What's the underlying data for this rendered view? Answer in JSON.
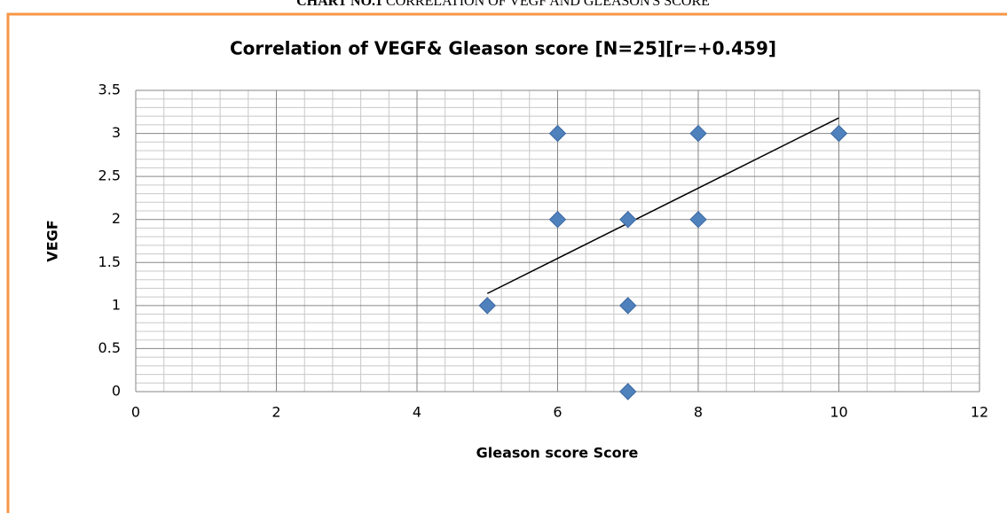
{
  "caption": {
    "bold": "CHART NO.1",
    "text": "CORRELATION OF VEGF AND GLEASON'S SCORE"
  },
  "chart_data": {
    "type": "scatter",
    "title": "Correlation of VEGF& Gleason score [N=25][r=+0.459]",
    "x_label": "Gleason score Score",
    "y_label": "VEGF",
    "x": [
      5,
      6,
      6,
      7,
      7,
      7,
      8,
      8,
      10
    ],
    "series": [
      {
        "name": "VEGF",
        "color": "#4f81bd",
        "values": [
          1,
          3,
          2,
          2,
          1,
          0,
          3,
          2,
          3
        ]
      }
    ],
    "trendline": {
      "x": [
        5,
        10
      ],
      "y": [
        1.14,
        3.18
      ],
      "color": "#000000"
    },
    "xlim": [
      0,
      12
    ],
    "xticks": [
      0,
      2,
      4,
      6,
      8,
      10,
      12
    ],
    "ylim": [
      0,
      3.5
    ],
    "yticks": [
      0,
      0.5,
      1,
      1.5,
      2,
      2.5,
      3,
      3.5
    ],
    "grid": true,
    "minor_grid": true
  }
}
